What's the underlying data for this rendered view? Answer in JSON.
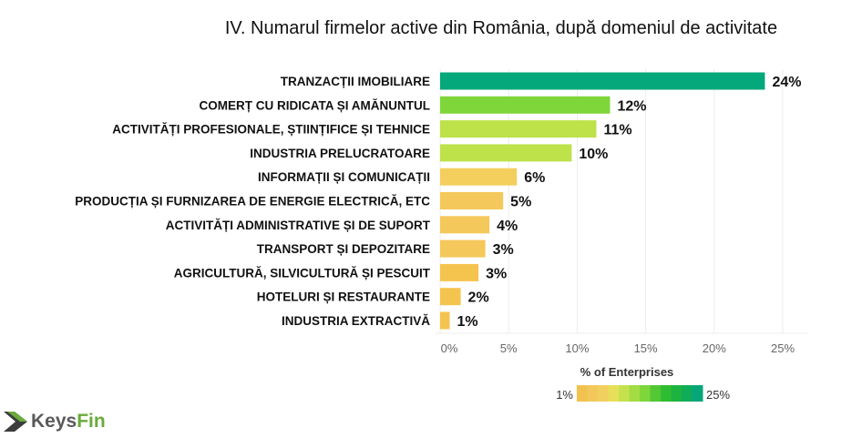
{
  "chart_data": {
    "type": "bar",
    "orientation": "horizontal",
    "title": "IV. Numarul firmelor active din România, după domeniul de activitate",
    "categories": [
      "TRANZACȚII IMOBILIARE",
      "COMERȚ CU RIDICATA ȘI AMĂNUNTUL",
      "ACTIVITĂȚI PROFESIONALE, ȘTIINȚIFICE ȘI TEHNICE",
      "INDUSTRIA PRELUCRATOARE",
      "INFORMAȚII ȘI COMUNICAȚII",
      "PRODUCȚIA ȘI FURNIZAREA DE ENERGIE ELECTRICĂ, ETC",
      "ACTIVITĂȚI ADMINISTRATIVE ȘI DE SUPORT",
      "TRANSPORT ȘI DEPOZITARE",
      "AGRICULTURĂ, SILVICULTURĂ ȘI PESCUIT",
      "HOTELURI ȘI RESTAURANTE",
      "INDUSTRIA EXTRACTIVĂ"
    ],
    "values": [
      23.7,
      12.4,
      11.4,
      9.6,
      5.6,
      4.6,
      3.6,
      3.3,
      2.8,
      1.5,
      0.7
    ],
    "data_labels": [
      "24%",
      "12%",
      "11%",
      "10%",
      "6%",
      "5%",
      "4%",
      "3%",
      "3%",
      "2%",
      "1%"
    ],
    "colors": [
      "#05a87a",
      "#7ed63a",
      "#bde24a",
      "#bde24a",
      "#f4cf5e",
      "#f4c85a",
      "#f4c85a",
      "#f4c85a",
      "#f4c44e",
      "#f4c44e",
      "#f4c44e"
    ],
    "xlim": [
      0,
      25
    ],
    "xticks": [
      "0%",
      "5%",
      "10%",
      "15%",
      "20%",
      "25%"
    ],
    "xtick_values": [
      0,
      5,
      10,
      15,
      20,
      25
    ],
    "grid": true,
    "legend": {
      "title": "% of Enterprises",
      "min_label": "1%",
      "max_label": "25%",
      "placement": "bottom-right",
      "colors": [
        "#f2c24e",
        "#f2c85a",
        "#f1d060",
        "#e7df5a",
        "#c5e24e",
        "#a3dc44",
        "#7ed63a",
        "#52c834",
        "#2fbd31",
        "#1db340",
        "#0fad5a",
        "#07a678"
      ]
    }
  },
  "logo": {
    "part1": "Keys",
    "part2": "Fin"
  }
}
